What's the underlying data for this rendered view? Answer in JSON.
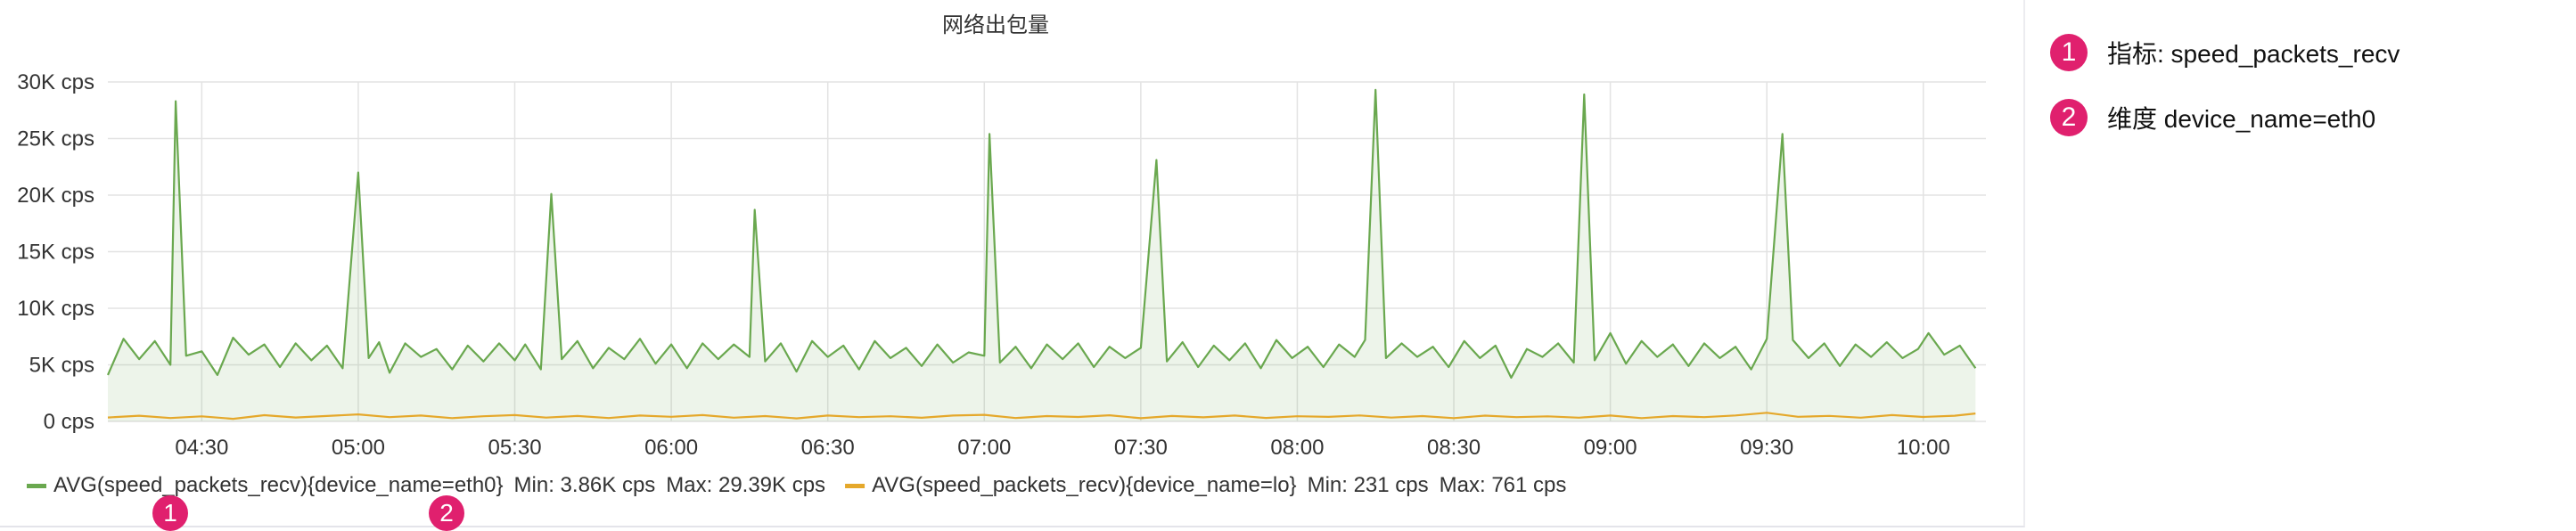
{
  "chart_data": {
    "type": "line",
    "title": "网络出包量",
    "xlabel": "",
    "ylabel": "",
    "ylim": [
      0,
      30000
    ],
    "y_ticks": [
      {
        "value": 0,
        "label": "0 cps"
      },
      {
        "value": 5000,
        "label": "5K cps"
      },
      {
        "value": 10000,
        "label": "10K cps"
      },
      {
        "value": 15000,
        "label": "15K cps"
      },
      {
        "value": 20000,
        "label": "20K cps"
      },
      {
        "value": 25000,
        "label": "25K cps"
      },
      {
        "value": 30000,
        "label": "30K cps"
      }
    ],
    "x_range": [
      "04:12",
      "10:12"
    ],
    "x_ticks": [
      "04:30",
      "05:00",
      "05:30",
      "06:00",
      "06:30",
      "07:00",
      "07:30",
      "08:00",
      "08:30",
      "09:00",
      "09:30",
      "10:00"
    ],
    "grid": true,
    "legend_position": "bottom-left",
    "series": [
      {
        "name": "AVG(speed_packets_recv){device_name=eth0}",
        "color": "#6aa84f",
        "fill": true,
        "min_label": "Min: 3.86K cps",
        "max_label": "Max: 29.39K cps",
        "points": [
          [
            "04:12",
            4100
          ],
          [
            "04:15",
            7300
          ],
          [
            "04:18",
            5500
          ],
          [
            "04:21",
            7100
          ],
          [
            "04:24",
            5000
          ],
          [
            "04:25",
            28300
          ],
          [
            "04:27",
            5800
          ],
          [
            "04:30",
            6200
          ],
          [
            "04:33",
            4100
          ],
          [
            "04:36",
            7400
          ],
          [
            "04:39",
            5900
          ],
          [
            "04:42",
            6800
          ],
          [
            "04:45",
            4800
          ],
          [
            "04:48",
            6900
          ],
          [
            "04:51",
            5400
          ],
          [
            "04:54",
            6700
          ],
          [
            "04:57",
            4700
          ],
          [
            "05:00",
            22000
          ],
          [
            "05:02",
            5600
          ],
          [
            "05:04",
            7000
          ],
          [
            "05:06",
            4300
          ],
          [
            "05:09",
            6900
          ],
          [
            "05:12",
            5700
          ],
          [
            "05:15",
            6400
          ],
          [
            "05:18",
            4600
          ],
          [
            "05:21",
            6700
          ],
          [
            "05:24",
            5300
          ],
          [
            "05:27",
            6900
          ],
          [
            "05:30",
            5400
          ],
          [
            "05:32",
            6800
          ],
          [
            "05:35",
            4600
          ],
          [
            "05:37",
            20100
          ],
          [
            "05:39",
            5500
          ],
          [
            "05:42",
            7100
          ],
          [
            "05:45",
            4700
          ],
          [
            "05:48",
            6500
          ],
          [
            "05:51",
            5500
          ],
          [
            "05:54",
            7300
          ],
          [
            "05:57",
            5100
          ],
          [
            "06:00",
            6800
          ],
          [
            "06:03",
            4700
          ],
          [
            "06:06",
            6900
          ],
          [
            "06:09",
            5500
          ],
          [
            "06:12",
            6800
          ],
          [
            "06:15",
            5700
          ],
          [
            "06:16",
            18700
          ],
          [
            "06:18",
            5300
          ],
          [
            "06:21",
            6900
          ],
          [
            "06:24",
            4400
          ],
          [
            "06:27",
            7100
          ],
          [
            "06:30",
            5700
          ],
          [
            "06:33",
            6700
          ],
          [
            "06:36",
            4600
          ],
          [
            "06:39",
            7100
          ],
          [
            "06:42",
            5600
          ],
          [
            "06:45",
            6500
          ],
          [
            "06:48",
            4900
          ],
          [
            "06:51",
            6800
          ],
          [
            "06:54",
            5200
          ],
          [
            "06:57",
            6100
          ],
          [
            "07:00",
            5800
          ],
          [
            "07:01",
            25400
          ],
          [
            "07:03",
            5200
          ],
          [
            "07:06",
            6600
          ],
          [
            "07:09",
            4700
          ],
          [
            "07:12",
            6800
          ],
          [
            "07:15",
            5500
          ],
          [
            "07:18",
            6900
          ],
          [
            "07:21",
            4800
          ],
          [
            "07:24",
            6600
          ],
          [
            "07:27",
            5600
          ],
          [
            "07:30",
            6500
          ],
          [
            "07:33",
            23100
          ],
          [
            "07:35",
            5300
          ],
          [
            "07:38",
            7000
          ],
          [
            "07:41",
            4800
          ],
          [
            "07:44",
            6700
          ],
          [
            "07:47",
            5400
          ],
          [
            "07:50",
            6900
          ],
          [
            "07:53",
            4700
          ],
          [
            "07:56",
            7200
          ],
          [
            "07:59",
            5600
          ],
          [
            "08:02",
            6600
          ],
          [
            "08:05",
            4800
          ],
          [
            "08:08",
            6800
          ],
          [
            "08:11",
            5700
          ],
          [
            "08:13",
            7200
          ],
          [
            "08:15",
            29300
          ],
          [
            "08:17",
            5600
          ],
          [
            "08:20",
            6900
          ],
          [
            "08:23",
            5700
          ],
          [
            "08:26",
            6600
          ],
          [
            "08:29",
            4800
          ],
          [
            "08:32",
            7100
          ],
          [
            "08:35",
            5600
          ],
          [
            "08:38",
            6700
          ],
          [
            "08:41",
            3860
          ],
          [
            "08:44",
            6400
          ],
          [
            "08:47",
            5700
          ],
          [
            "08:50",
            6900
          ],
          [
            "08:53",
            5200
          ],
          [
            "08:55",
            28900
          ],
          [
            "08:57",
            5400
          ],
          [
            "09:00",
            7800
          ],
          [
            "09:03",
            5100
          ],
          [
            "09:06",
            7100
          ],
          [
            "09:09",
            5700
          ],
          [
            "09:12",
            6800
          ],
          [
            "09:15",
            4900
          ],
          [
            "09:18",
            6900
          ],
          [
            "09:21",
            5600
          ],
          [
            "09:24",
            6600
          ],
          [
            "09:27",
            4600
          ],
          [
            "09:30",
            7300
          ],
          [
            "09:33",
            25400
          ],
          [
            "09:35",
            7200
          ],
          [
            "09:38",
            5600
          ],
          [
            "09:41",
            6900
          ],
          [
            "09:44",
            4900
          ],
          [
            "09:47",
            6800
          ],
          [
            "09:50",
            5700
          ],
          [
            "09:53",
            7000
          ],
          [
            "09:56",
            5600
          ],
          [
            "09:59",
            6400
          ],
          [
            "10:01",
            7800
          ],
          [
            "10:04",
            5900
          ],
          [
            "10:07",
            6700
          ],
          [
            "10:10",
            4700
          ]
        ]
      },
      {
        "name": "AVG(speed_packets_recv){device_name=lo}",
        "color": "#e5a82b",
        "fill": false,
        "min_label": "Min: 231 cps",
        "max_label": "Max: 761 cps",
        "points": [
          [
            "04:12",
            350
          ],
          [
            "04:18",
            500
          ],
          [
            "04:24",
            300
          ],
          [
            "04:30",
            450
          ],
          [
            "04:36",
            231
          ],
          [
            "04:42",
            550
          ],
          [
            "04:48",
            350
          ],
          [
            "04:54",
            480
          ],
          [
            "05:00",
            620
          ],
          [
            "05:06",
            380
          ],
          [
            "05:12",
            520
          ],
          [
            "05:18",
            290
          ],
          [
            "05:24",
            460
          ],
          [
            "05:30",
            560
          ],
          [
            "05:36",
            340
          ],
          [
            "05:42",
            480
          ],
          [
            "05:48",
            300
          ],
          [
            "05:54",
            520
          ],
          [
            "06:00",
            410
          ],
          [
            "06:06",
            560
          ],
          [
            "06:12",
            330
          ],
          [
            "06:18",
            470
          ],
          [
            "06:24",
            270
          ],
          [
            "06:30",
            520
          ],
          [
            "06:36",
            380
          ],
          [
            "06:42",
            460
          ],
          [
            "06:48",
            320
          ],
          [
            "06:54",
            520
          ],
          [
            "07:00",
            580
          ],
          [
            "07:06",
            300
          ],
          [
            "07:12",
            470
          ],
          [
            "07:18",
            390
          ],
          [
            "07:24",
            540
          ],
          [
            "07:30",
            280
          ],
          [
            "07:36",
            480
          ],
          [
            "07:42",
            360
          ],
          [
            "07:48",
            520
          ],
          [
            "07:54",
            310
          ],
          [
            "08:00",
            460
          ],
          [
            "08:06",
            400
          ],
          [
            "08:12",
            530
          ],
          [
            "08:18",
            340
          ],
          [
            "08:24",
            470
          ],
          [
            "08:30",
            290
          ],
          [
            "08:36",
            510
          ],
          [
            "08:42",
            380
          ],
          [
            "08:48",
            450
          ],
          [
            "08:54",
            330
          ],
          [
            "09:00",
            520
          ],
          [
            "09:06",
            290
          ],
          [
            "09:12",
            470
          ],
          [
            "09:18",
            380
          ],
          [
            "09:24",
            530
          ],
          [
            "09:30",
            761
          ],
          [
            "09:36",
            410
          ],
          [
            "09:42",
            490
          ],
          [
            "09:48",
            330
          ],
          [
            "09:54",
            560
          ],
          [
            "10:00",
            390
          ],
          [
            "10:06",
            500
          ],
          [
            "10:10",
            700
          ]
        ]
      }
    ]
  },
  "annotations": [
    {
      "number": "1",
      "text": "指标: speed_packets_recv"
    },
    {
      "number": "2",
      "text": "维度 device_name=eth0"
    }
  ]
}
